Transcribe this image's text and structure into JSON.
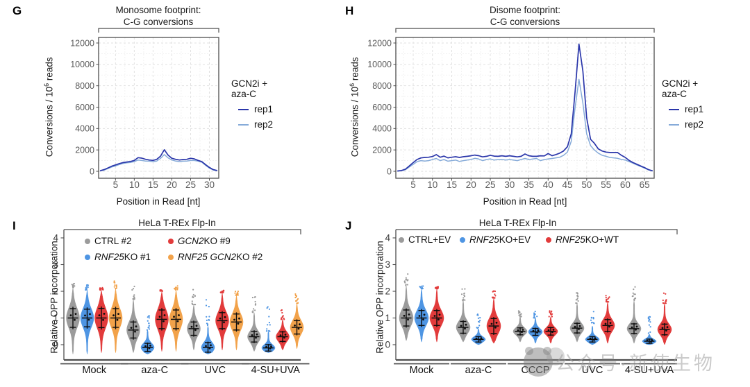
{
  "colors": {
    "rep1": "#2a36aa",
    "rep2": "#86abd9",
    "gray": "#9b9b9b",
    "blue": "#4e95e3",
    "red": "#e23b3b",
    "orange": "#f2a24a",
    "axis": "#4d4d4d",
    "tick_label": "#595959",
    "grid_major": "#e1e1e1",
    "grid_minor": "#efefef",
    "errorbar": "#0d0d0d",
    "watermark": "#9e9e9e"
  },
  "watermark": {
    "text": "公众号·新使生物"
  },
  "panels": {
    "G": {
      "label": "G",
      "title_line1": "Monosome footprint:",
      "title_line2": "C-G conversions",
      "xlabel": "Position in Read [nt]",
      "ylabel": {
        "prefix": "Conversions / 10",
        "sup": "6",
        "suffix": " reads"
      },
      "legend": {
        "title": "GCN2i + aza-C",
        "entries": [
          {
            "label": "rep1",
            "color_key": "rep1"
          },
          {
            "label": "rep2",
            "color_key": "rep2"
          }
        ]
      },
      "chart_data": {
        "type": "line",
        "title": "Monosome footprint: C-G conversions",
        "xlabel": "Position in Read [nt]",
        "ylabel": "Conversions / 10^6 reads",
        "xlim": [
          0.5,
          32.5
        ],
        "ylim": [
          0,
          12000
        ],
        "grid": true,
        "legend_position": "right",
        "x_ticks": [
          5,
          10,
          15,
          20,
          25,
          30
        ],
        "y_ticks": [
          0,
          2000,
          4000,
          6000,
          8000,
          10000,
          12000
        ],
        "series": [
          {
            "name": "rep1",
            "color_key": "rep1",
            "x_start": 1,
            "y": [
              60,
              160,
              320,
              480,
              600,
              720,
              820,
              870,
              920,
              1020,
              1280,
              1230,
              1120,
              1060,
              1020,
              1120,
              1420,
              2020,
              1520,
              1220,
              1120,
              1060,
              1100,
              1120,
              1220,
              1160,
              1020,
              900,
              620,
              360,
              160,
              80
            ]
          },
          {
            "name": "rep2",
            "color_key": "rep2",
            "x_start": 1,
            "y": [
              40,
              120,
              260,
              400,
              500,
              630,
              730,
              790,
              830,
              910,
              1060,
              1010,
              960,
              950,
              900,
              960,
              1210,
              1560,
              1260,
              1060,
              960,
              910,
              950,
              960,
              1010,
              1010,
              950,
              850,
              560,
              300,
              130,
              60
            ]
          }
        ]
      }
    },
    "H": {
      "label": "H",
      "title_line1": "Disome footprint:",
      "title_line2": "C-G conversions",
      "xlabel": "Position in Read [nt]",
      "ylabel": {
        "prefix": "Conversions / 10",
        "sup": "6",
        "suffix": " reads"
      },
      "legend": {
        "title": "GCN2i + aza-C",
        "entries": [
          {
            "label": "rep1",
            "color_key": "rep1"
          },
          {
            "label": "rep2",
            "color_key": "rep2"
          }
        ]
      },
      "chart_data": {
        "type": "line",
        "title": "Disome footprint: C-G conversions",
        "xlabel": "Position in Read [nt]",
        "ylabel": "Conversions / 10^6 reads",
        "xlim": [
          0.5,
          67.5
        ],
        "ylim": [
          0,
          12000
        ],
        "grid": true,
        "legend_position": "right",
        "x_ticks": [
          5,
          10,
          15,
          20,
          25,
          30,
          35,
          40,
          45,
          50,
          55,
          60,
          65
        ],
        "y_ticks": [
          0,
          2000,
          4000,
          6000,
          8000,
          10000,
          12000
        ],
        "series": [
          {
            "name": "rep1",
            "color_key": "rep1",
            "x_start": 1,
            "y": [
              30,
              80,
              200,
              500,
              820,
              1100,
              1250,
              1300,
              1320,
              1380,
              1560,
              1320,
              1420,
              1260,
              1320,
              1360,
              1300,
              1360,
              1400,
              1450,
              1520,
              1460,
              1350,
              1400,
              1500,
              1420,
              1400,
              1450,
              1400,
              1450,
              1400,
              1350,
              1400,
              1620,
              1450,
              1400,
              1400,
              1450,
              1440,
              1660,
              1460,
              1560,
              1700,
              1900,
              2300,
              3500,
              7500,
              11900,
              9400,
              5000,
              3000,
              2620,
              2100,
              1900,
              1800,
              1760,
              1760,
              1760,
              1500,
              1300,
              1020,
              820,
              660,
              500,
              350,
              160,
              50
            ]
          },
          {
            "name": "rep2",
            "color_key": "rep2",
            "x_start": 1,
            "y": [
              20,
              60,
              150,
              400,
              650,
              900,
              1000,
              960,
              1000,
              1100,
              1200,
              1000,
              1100,
              950,
              1000,
              1060,
              920,
              1000,
              1060,
              1100,
              1210,
              1150,
              1000,
              1100,
              1160,
              1050,
              1100,
              1110,
              1050,
              1100,
              1050,
              1000,
              1100,
              1200,
              1100,
              1150,
              1200,
              1000,
              1100,
              1150,
              1200,
              1260,
              1320,
              1500,
              1800,
              2800,
              6000,
              8600,
              6400,
              3500,
              2400,
              2000,
              1700,
              1500,
              1400,
              1300,
              1260,
              1210,
              1110,
              1050,
              900,
              760,
              600,
              450,
              300,
              130,
              40
            ]
          }
        ]
      }
    },
    "I": {
      "label": "I",
      "title": "HeLa T-REx Flp-In",
      "ylabel": "Relative OPP incorporation",
      "legend": {
        "columns": 2,
        "entries": [
          {
            "color_key": "gray",
            "segments": [
              {
                "text": "CTRL #2",
                "italic": false
              }
            ]
          },
          {
            "color_key": "blue",
            "segments": [
              {
                "text": "RNF25",
                "italic": true
              },
              {
                "text": " KO #1",
                "italic": false
              }
            ]
          },
          {
            "color_key": "red",
            "segments": [
              {
                "text": "GCN2",
                "italic": true
              },
              {
                "text": " KO #9",
                "italic": false
              }
            ]
          },
          {
            "color_key": "orange",
            "segments": [
              {
                "text": "RNF25 GCN2",
                "italic": true
              },
              {
                "text": " KO #2",
                "italic": false
              }
            ]
          }
        ]
      },
      "chart_data": {
        "type": "violin",
        "title": "HeLa T-REx Flp-In",
        "ylabel": "Relative OPP incorporation",
        "ylim": [
          -0.5,
          4.1
        ],
        "y_ticks": [
          0,
          1,
          2,
          3,
          4
        ],
        "grid": false,
        "legend_position": "top",
        "stats_format": "[median, sd, min, max_body, max_outliers]",
        "categories": [
          "Mock",
          "aza-C",
          "UVC",
          "4-SU+UVA"
        ],
        "series": [
          {
            "name": "CTRL #2",
            "color_key": "gray",
            "stats": [
              [
                1.0,
                0.35,
                -0.35,
                2.15,
                2.3
              ],
              [
                0.55,
                0.3,
                -0.3,
                1.7,
                2.3
              ],
              [
                0.6,
                0.25,
                -0.2,
                1.5,
                2.2
              ],
              [
                0.3,
                0.2,
                -0.25,
                1.2,
                1.9
              ]
            ]
          },
          {
            "name": "RNF25 KO #1",
            "color_key": "blue",
            "stats": [
              [
                1.0,
                0.33,
                -0.35,
                2.05,
                2.25
              ],
              [
                -0.1,
                0.15,
                -0.35,
                0.55,
                1.1
              ],
              [
                -0.1,
                0.18,
                -0.35,
                0.7,
                1.8
              ],
              [
                -0.12,
                0.12,
                -0.3,
                0.5,
                1.45
              ]
            ]
          },
          {
            "name": "GCN2 KO #9",
            "color_key": "red",
            "stats": [
              [
                1.0,
                0.36,
                -0.3,
                2.05,
                2.15
              ],
              [
                0.95,
                0.35,
                -0.25,
                2.0,
                2.05
              ],
              [
                0.9,
                0.3,
                -0.2,
                1.95,
                2.05
              ],
              [
                0.3,
                0.18,
                -0.2,
                0.95,
                1.3
              ]
            ]
          },
          {
            "name": "RNF25 GCN2 KO #2",
            "color_key": "orange",
            "stats": [
              [
                1.0,
                0.35,
                -0.3,
                2.1,
                2.4
              ],
              [
                0.95,
                0.35,
                -0.25,
                2.05,
                2.2
              ],
              [
                0.85,
                0.3,
                -0.2,
                1.85,
                2.0
              ],
              [
                0.65,
                0.25,
                -0.15,
                1.55,
                1.95
              ]
            ]
          }
        ]
      }
    },
    "J": {
      "label": "J",
      "title": "HeLa T-REx Flp-In",
      "ylabel": "Relative OPP incorporation",
      "legend": {
        "columns": 3,
        "entries": [
          {
            "color_key": "gray",
            "segments": [
              {
                "text": "CTRL+EV",
                "italic": false
              }
            ]
          },
          {
            "color_key": "blue",
            "segments": [
              {
                "text": "RNF25",
                "italic": true
              },
              {
                "text": " KO+EV",
                "italic": false
              }
            ]
          },
          {
            "color_key": "red",
            "segments": [
              {
                "text": "RNF25",
                "italic": true
              },
              {
                "text": " KO+WT",
                "italic": false
              }
            ]
          }
        ]
      },
      "chart_data": {
        "type": "violin",
        "title": "HeLa T-REx Flp-In",
        "ylabel": "Relative OPP incorporation",
        "ylim": [
          -0.5,
          4.1
        ],
        "y_ticks": [
          0,
          1,
          2,
          3,
          4
        ],
        "grid": false,
        "legend_position": "top",
        "stats_format": "[median, sd, min, max_body, max_outliers]",
        "categories": [
          "Mock",
          "aza-C",
          "CCCP",
          "UVC",
          "4-SU+UVA"
        ],
        "series": [
          {
            "name": "CTRL+EV",
            "color_key": "gray",
            "stats": [
              [
                1.0,
                0.3,
                0.15,
                2.2,
                2.65
              ],
              [
                0.65,
                0.22,
                0.1,
                1.65,
                2.1
              ],
              [
                0.5,
                0.13,
                0.1,
                1.05,
                1.3
              ],
              [
                0.62,
                0.18,
                0.1,
                1.55,
                1.95
              ],
              [
                0.6,
                0.18,
                0.05,
                1.65,
                2.4
              ]
            ]
          },
          {
            "name": "RNF25 KO+EV",
            "color_key": "blue",
            "stats": [
              [
                1.0,
                0.28,
                0.1,
                2.1,
                2.2
              ],
              [
                0.2,
                0.1,
                0.0,
                0.6,
                1.15
              ],
              [
                0.48,
                0.13,
                0.05,
                1.0,
                1.25
              ],
              [
                0.2,
                0.1,
                0.0,
                0.7,
                1.25
              ],
              [
                0.13,
                0.08,
                0.0,
                0.4,
                1.05
              ]
            ]
          },
          {
            "name": "RNF25 KO+WT",
            "color_key": "red",
            "stats": [
              [
                1.0,
                0.28,
                0.1,
                2.1,
                2.2
              ],
              [
                0.7,
                0.28,
                0.05,
                1.75,
                2.05
              ],
              [
                0.5,
                0.14,
                0.05,
                1.05,
                1.3
              ],
              [
                0.72,
                0.22,
                0.05,
                1.6,
                1.95
              ],
              [
                0.57,
                0.2,
                0.0,
                1.55,
                2.0
              ]
            ]
          }
        ]
      }
    }
  }
}
